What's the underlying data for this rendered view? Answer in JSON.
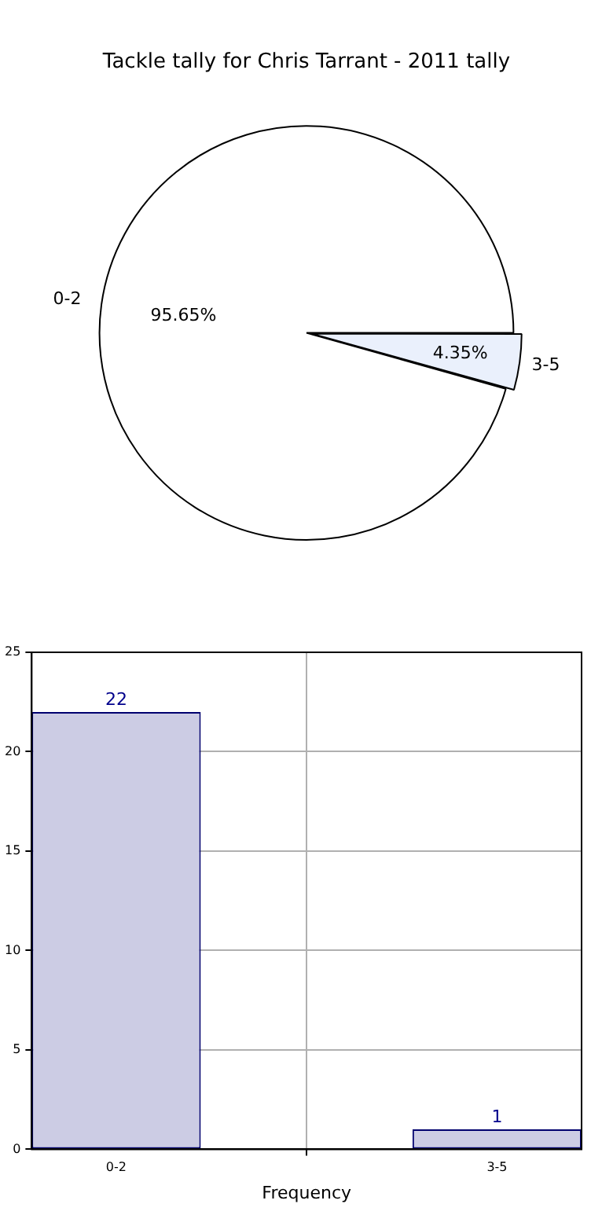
{
  "chart_data": [
    {
      "type": "pie",
      "title": "Tackle tally for Chris Tarrant - 2011 tally",
      "categories": [
        "0-2",
        "3-5"
      ],
      "values": [
        95.65,
        4.35
      ],
      "colors": [
        "#ffffff",
        "#eaf0fc"
      ],
      "value_labels": [
        "95.65%",
        "4.35%"
      ]
    },
    {
      "type": "bar",
      "xlabel": "Frequency",
      "categories": [
        "0-2",
        "3-5"
      ],
      "values": [
        22,
        1
      ],
      "color": "#cccce4",
      "ylim": [
        0,
        25
      ],
      "yticks": [
        0,
        5,
        10,
        15,
        20,
        25
      ],
      "grid": true,
      "data_labels": true
    }
  ]
}
